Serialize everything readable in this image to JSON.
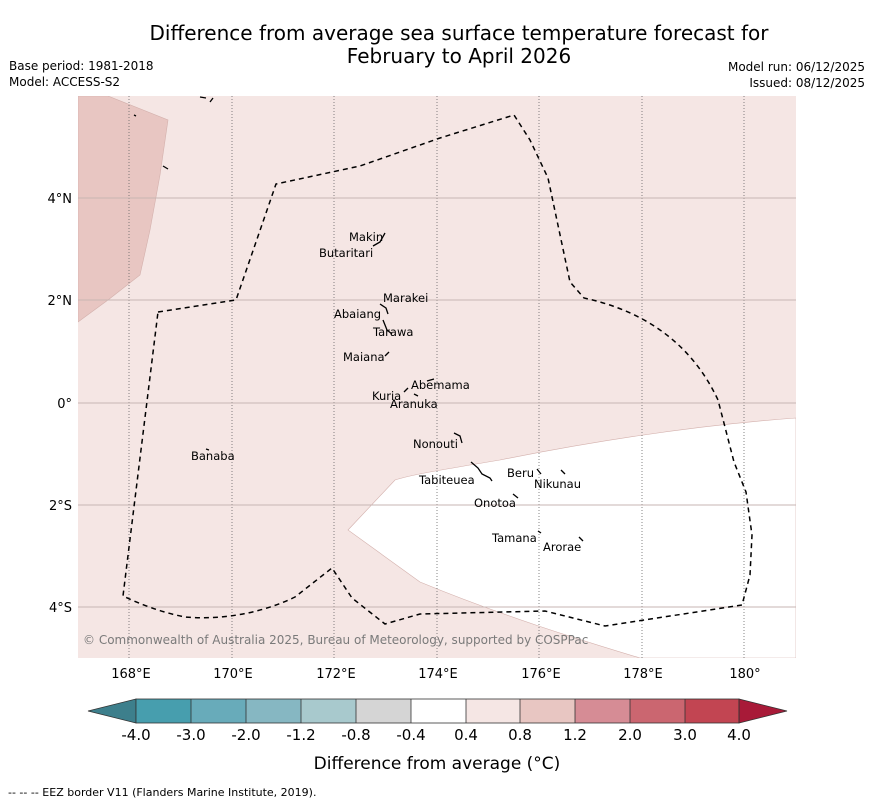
{
  "title": {
    "line1": "Difference from average sea surface temperature forecast for",
    "line2": "February to April 2026"
  },
  "meta": {
    "base_period": "Base period: 1981-2018",
    "model": "Model: ACCESS-S2",
    "model_run": "Model run: 06/12/2025",
    "issued": "Issued: 08/12/2025"
  },
  "axes": {
    "lon_labels": [
      "168°E",
      "170°E",
      "172°E",
      "174°E",
      "176°E",
      "178°E",
      "180°"
    ],
    "lat_labels": [
      "4°N",
      "2°N",
      "0°",
      "2°S",
      "4°S"
    ]
  },
  "places": [
    "Makin",
    "Butaritari",
    "Marakei",
    "Abaiang",
    "Tarawa",
    "Maiana",
    "Abemama",
    "Kuria",
    "Aranuka",
    "Nonouti",
    "Banaba",
    "Tabiteuea",
    "Beru",
    "Nikunau",
    "Onotoa",
    "Tamana",
    "Arorae"
  ],
  "copyright": "© Commonwealth of Australia 2025, Bureau of Meteorology, supported by COSPPac",
  "colorbar": {
    "ticks": [
      "-4.0",
      "-3.0",
      "-2.0",
      "-1.2",
      "-0.8",
      "-0.4",
      "0.4",
      "0.8",
      "1.2",
      "2.0",
      "3.0",
      "4.0"
    ],
    "colors": {
      "under": "#3d7f8c",
      "bins": [
        "#479eae",
        "#68abba",
        "#86b7c2",
        "#a8c9cd",
        "#d5d5d5",
        "#ffffff",
        "#f5e6e4",
        "#e8c6c2",
        "#d68c95",
        "#cb6670",
        "#c24552"
      ],
      "over": "#a81a38"
    },
    "label": "Difference from average (°C)"
  },
  "legend_note": "--  --  -- EEZ border V11 (Flanders Marine Institute, 2019)."
}
